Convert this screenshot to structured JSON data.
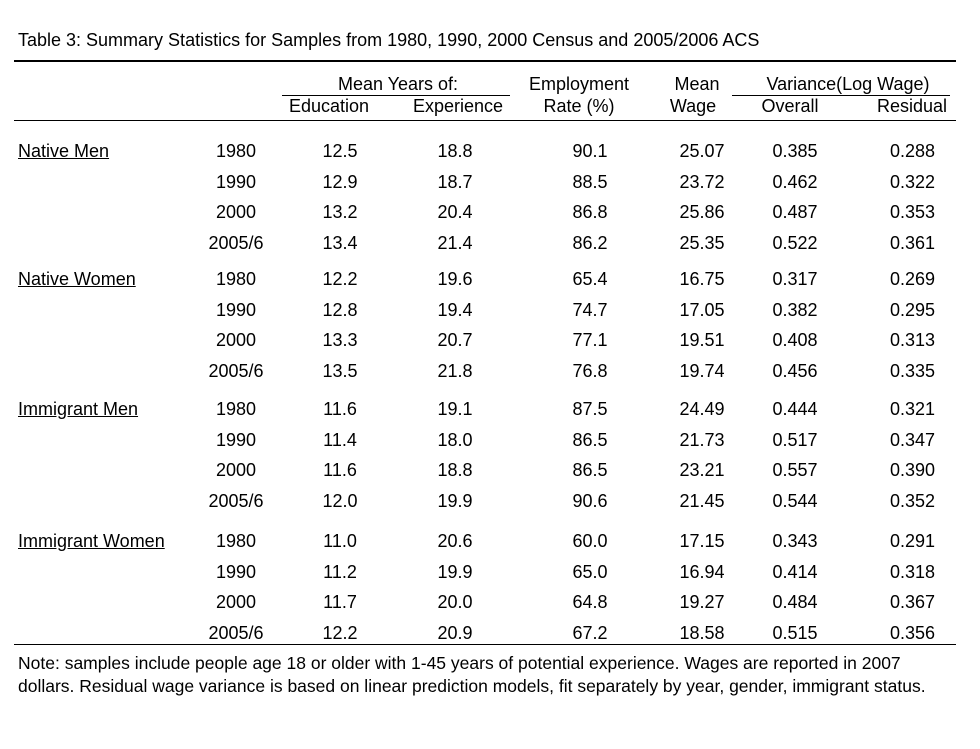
{
  "caption": "Table 3:  Summary Statistics for Samples from 1980, 1990, 2000 Census and 2005/2006 ACS",
  "headers": {
    "mean_years_of": "Mean Years of:",
    "education": "Education",
    "experience": "Experience",
    "employment_line1": "Employment",
    "employment_line2": "Rate (%)",
    "mean_line1": "Mean",
    "mean_line2": "Wage",
    "variance": "Variance(Log Wage)",
    "overall": "Overall",
    "residual": "Residual"
  },
  "groups": [
    {
      "label": "Native Men",
      "rows": [
        {
          "year": "1980",
          "education": "12.5",
          "experience": "18.8",
          "employment": "90.1",
          "wage": "25.07",
          "overall": "0.385",
          "residual": "0.288"
        },
        {
          "year": "1990",
          "education": "12.9",
          "experience": "18.7",
          "employment": "88.5",
          "wage": "23.72",
          "overall": "0.462",
          "residual": "0.322"
        },
        {
          "year": "2000",
          "education": "13.2",
          "experience": "20.4",
          "employment": "86.8",
          "wage": "25.86",
          "overall": "0.487",
          "residual": "0.353"
        },
        {
          "year": "2005/6",
          "education": "13.4",
          "experience": "21.4",
          "employment": "86.2",
          "wage": "25.35",
          "overall": "0.522",
          "residual": "0.361"
        }
      ]
    },
    {
      "label": "Native Women",
      "rows": [
        {
          "year": "1980",
          "education": "12.2",
          "experience": "19.6",
          "employment": "65.4",
          "wage": "16.75",
          "overall": "0.317",
          "residual": "0.269"
        },
        {
          "year": "1990",
          "education": "12.8",
          "experience": "19.4",
          "employment": "74.7",
          "wage": "17.05",
          "overall": "0.382",
          "residual": "0.295"
        },
        {
          "year": "2000",
          "education": "13.3",
          "experience": "20.7",
          "employment": "77.1",
          "wage": "19.51",
          "overall": "0.408",
          "residual": "0.313"
        },
        {
          "year": "2005/6",
          "education": "13.5",
          "experience": "21.8",
          "employment": "76.8",
          "wage": "19.74",
          "overall": "0.456",
          "residual": "0.335"
        }
      ]
    },
    {
      "label": "Immigrant Men",
      "rows": [
        {
          "year": "1980",
          "education": "11.6",
          "experience": "19.1",
          "employment": "87.5",
          "wage": "24.49",
          "overall": "0.444",
          "residual": "0.321"
        },
        {
          "year": "1990",
          "education": "11.4",
          "experience": "18.0",
          "employment": "86.5",
          "wage": "21.73",
          "overall": "0.517",
          "residual": "0.347"
        },
        {
          "year": "2000",
          "education": "11.6",
          "experience": "18.8",
          "employment": "86.5",
          "wage": "23.21",
          "overall": "0.557",
          "residual": "0.390"
        },
        {
          "year": "2005/6",
          "education": "12.0",
          "experience": "19.9",
          "employment": "90.6",
          "wage": "21.45",
          "overall": "0.544",
          "residual": "0.352"
        }
      ]
    },
    {
      "label": "Immigrant Women",
      "rows": [
        {
          "year": "1980",
          "education": "11.0",
          "experience": "20.6",
          "employment": "60.0",
          "wage": "17.15",
          "overall": "0.343",
          "residual": "0.291"
        },
        {
          "year": "1990",
          "education": "11.2",
          "experience": "19.9",
          "employment": "65.0",
          "wage": "16.94",
          "overall": "0.414",
          "residual": "0.318"
        },
        {
          "year": "2000",
          "education": "11.7",
          "experience": "20.0",
          "employment": "64.8",
          "wage": "19.27",
          "overall": "0.484",
          "residual": "0.367"
        },
        {
          "year": "2005/6",
          "education": "12.2",
          "experience": "20.9",
          "employment": "67.2",
          "wage": "18.58",
          "overall": "0.515",
          "residual": "0.356"
        }
      ]
    }
  ],
  "note": "Note: samples include people age 18 or older with 1-45 years of potential experience. Wages are reported in 2007 dollars.  Residual wage variance is based on linear prediction models, fit separately by year, gender, immigrant status."
}
